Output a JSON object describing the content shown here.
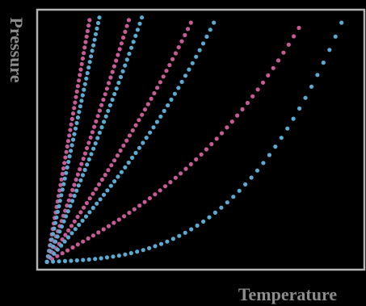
{
  "chart_data": {
    "type": "scatter",
    "title": "",
    "xlabel": "Temperature",
    "ylabel": "Pressure",
    "xlim": [
      0,
      1
    ],
    "ylim": [
      0,
      1
    ],
    "grid": false,
    "legend": "none",
    "style": {
      "background": "#000000",
      "frame_color": "#b4b4b4",
      "label_color": "#8c8c8c",
      "pink": "#c85a96",
      "blue": "#5aaad2"
    },
    "origin": [
      0.03,
      0.03
    ],
    "series": [
      {
        "color": "pink",
        "end": [
          0.16,
          0.96
        ],
        "curve": 0.0,
        "points": 45
      },
      {
        "color": "blue",
        "end": [
          0.19,
          0.97
        ],
        "curve": 0.0,
        "points": 45
      },
      {
        "color": "pink",
        "end": [
          0.28,
          0.96
        ],
        "curve": 0.05,
        "points": 46
      },
      {
        "color": "blue",
        "end": [
          0.32,
          0.97
        ],
        "curve": 0.07,
        "points": 46
      },
      {
        "color": "pink",
        "end": [
          0.47,
          0.95
        ],
        "curve": 0.12,
        "points": 48
      },
      {
        "color": "blue",
        "end": [
          0.54,
          0.95
        ],
        "curve": 0.2,
        "points": 48
      },
      {
        "color": "pink",
        "end": [
          0.8,
          0.93
        ],
        "curve": 0.4,
        "points": 50
      },
      {
        "color": "blue",
        "end": [
          0.93,
          0.95
        ],
        "curve": 0.95,
        "points": 50
      }
    ]
  }
}
